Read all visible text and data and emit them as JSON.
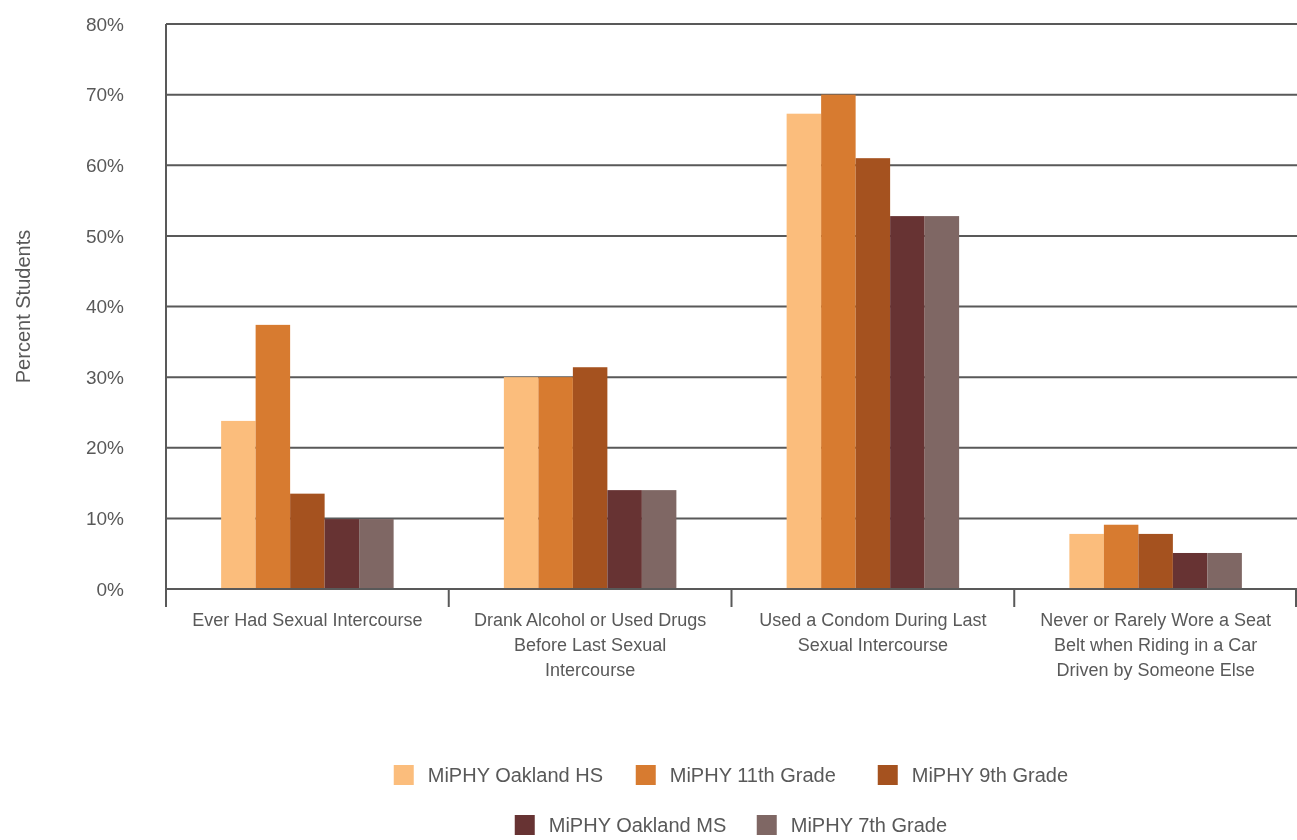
{
  "chart_data": {
    "type": "bar",
    "ylabel": "Percent Students",
    "categories": [
      "Ever Had Sexual Intercourse",
      "Drank Alcohol or Used Drugs Before Last Sexual Intercourse",
      "Used a Condom During Last Sexual Intercourse",
      "Never or Rarely Wore a Seat Belt when Riding in a Car Driven by Someone Else"
    ],
    "series": [
      {
        "name": "MiPHY Oakland HS",
        "color": "#fbbd7c",
        "values": [
          23.8,
          30.0,
          67.3,
          7.8
        ]
      },
      {
        "name": "MiPHY 11th Grade",
        "color": "#d77b30",
        "values": [
          37.4,
          30.0,
          70.0,
          9.1
        ]
      },
      {
        "name": "MiPHY 9th Grade",
        "color": "#a5521f",
        "values": [
          13.5,
          31.4,
          61.0,
          7.8
        ]
      },
      {
        "name": "MiPHY Oakland MS",
        "color": "#673333",
        "values": [
          9.9,
          14.0,
          52.8,
          5.1
        ]
      },
      {
        "name": "MiPHY 7th Grade",
        "color": "#7f6764",
        "values": [
          9.9,
          14.0,
          52.8,
          5.1
        ]
      }
    ],
    "ylim": [
      0,
      80
    ],
    "yticks": [
      {
        "value": 0,
        "label": "0%"
      },
      {
        "value": 10,
        "label": "10%"
      },
      {
        "value": 20,
        "label": "20%"
      },
      {
        "value": 30,
        "label": "30%"
      },
      {
        "value": 40,
        "label": "40%"
      },
      {
        "value": 50,
        "label": "50%"
      },
      {
        "value": 60,
        "label": "60%"
      },
      {
        "value": 70,
        "label": "70%"
      },
      {
        "value": 80,
        "label": "80%"
      }
    ],
    "grid": "y",
    "legend": "bottom"
  }
}
